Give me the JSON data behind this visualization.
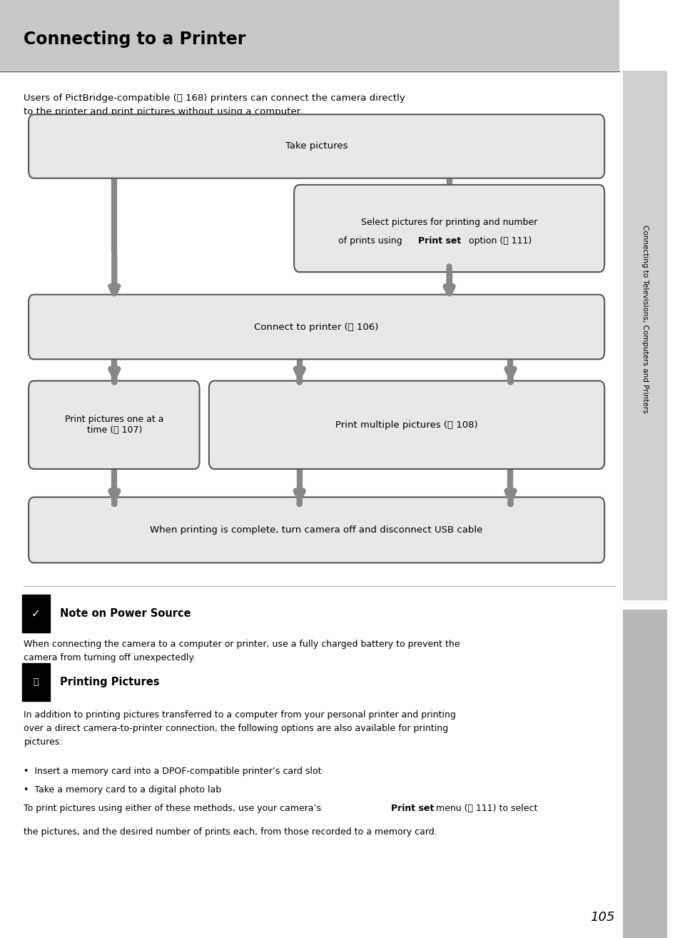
{
  "title": "Connecting to a Printer",
  "page_number": "105",
  "bg_color": "#ffffff",
  "header_bg": "#c8c8c8",
  "sidebar_bg": "#d0d0d0",
  "box_bg": "#e8e8e8",
  "box_border": "#555555",
  "arrow_color": "#888888",
  "intro_text_1": "Users of PictBridge-compatible (",
  "intro_ref_1": "Ⓣ 168",
  "intro_text_2": ") printers can connect the camera directly\nto the printer and print pictures without using a computer.",
  "sidebar_text": "Connecting to Televisions, Computers and Printers",
  "note_power_title": "Note on Power Source",
  "note_power_text": "When connecting the camera to a computer or printer, use a fully charged battery to prevent the\ncamera from turning off unexpectedly.",
  "note_print_title": "Printing Pictures",
  "note_print_text1": "In addition to printing pictures transferred to a computer from your personal printer and printing\nover a direct camera-to-printer connection, the following options are also available for printing\npictures:",
  "bullet1": "•  Insert a memory card into a DPOF-compatible printer’s card slot",
  "bullet2": "•  Take a memory card to a digital photo lab",
  "last_para_pre": "To print pictures using either of these methods, use your camera’s ",
  "last_para_bold": "Print set",
  "last_para_post": " menu (Ⓣ 111) to select",
  "last_para_line2": "the pictures, and the desired number of prints each, from those recorded to a memory card."
}
